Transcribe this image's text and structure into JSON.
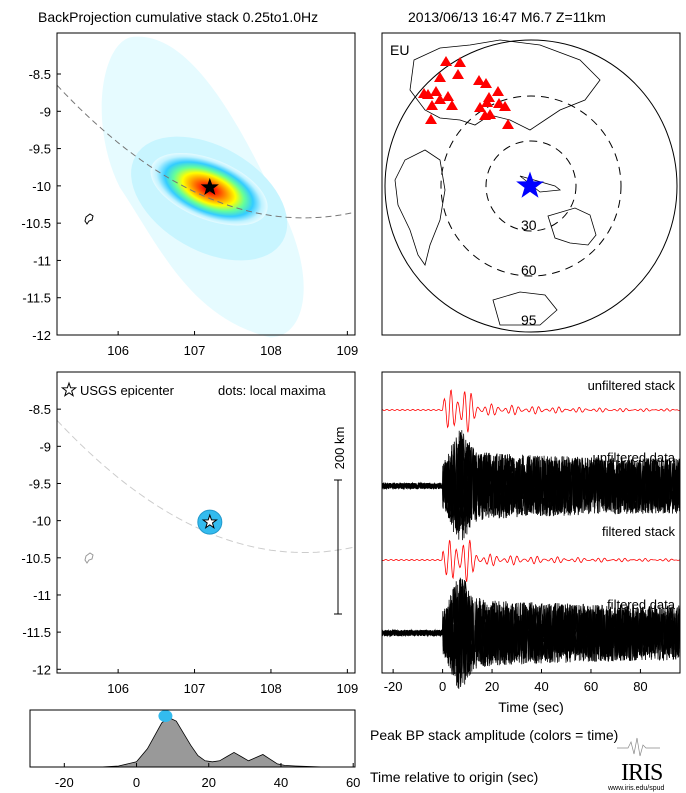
{
  "header": {
    "title_left": "BackProjection cumulative stack 0.25to1.0Hz",
    "title_right": "2013/06/13 16:47  M6.7  Z=11km"
  },
  "colors": {
    "station": "#ff0000",
    "epicenter_star": "#0000ff",
    "local_max_dot": "#33bbee",
    "stack_trace": "#ff0000",
    "data_trace": "#000000",
    "peak_fill": "#999999"
  },
  "chart_data": [
    {
      "type": "heatmap",
      "name": "cumulative-stack-map",
      "xlim": [
        105.2,
        109.1
      ],
      "ylim": [
        -12,
        -7.95
      ],
      "xticks": [
        "106",
        "107",
        "108",
        "109"
      ],
      "yticks": [
        "-8.5",
        "-9",
        "-9.5",
        "-10",
        "-10.5",
        "-11",
        "-11.5",
        "-12"
      ],
      "peak": {
        "lon": 107.2,
        "lat": -10.02
      },
      "epicenter": {
        "lon": 107.2,
        "lat": -10.02
      }
    },
    {
      "type": "scatter",
      "name": "station-map",
      "label": "EU",
      "distance_rings": [
        "30",
        "60",
        "95"
      ]
    },
    {
      "type": "scatter",
      "name": "local-maxima-map",
      "legend": "USGS epicenter",
      "note": "dots: local maxima",
      "scalebar": "200 km",
      "xlim": [
        105.2,
        109.1
      ],
      "ylim": [
        -12,
        -7.95
      ],
      "xticks": [
        "106",
        "107",
        "108",
        "109"
      ],
      "yticks": [
        "-8.5",
        "-9",
        "-9.5",
        "-10",
        "-10.5",
        "-11",
        "-11.5",
        "-12"
      ],
      "points": [
        {
          "lon": 107.2,
          "lat": -10.02
        }
      ]
    },
    {
      "type": "line",
      "name": "waveforms",
      "xlabel": "Time (sec)",
      "xlim": [
        -24.5,
        96
      ],
      "xticks": [
        "-20",
        "0",
        "20",
        "40",
        "60",
        "80"
      ],
      "series": [
        {
          "name": "unfiltered stack"
        },
        {
          "name": "unfiltered data"
        },
        {
          "name": "filtered stack"
        },
        {
          "name": "filtered data"
        }
      ]
    },
    {
      "type": "area",
      "name": "peak-amplitude",
      "title": "Peak BP stack amplitude (colors = time)",
      "xlabel": "Time relative to origin (sec)",
      "xlim": [
        -29.5,
        60.5
      ],
      "xticks": [
        "-20",
        "0",
        "20",
        "40",
        "60"
      ],
      "x": [
        -10,
        -5,
        0,
        3,
        5,
        7,
        9,
        11,
        13,
        15,
        17,
        19,
        21,
        23,
        25,
        27,
        29,
        31,
        33,
        35,
        37,
        39,
        41,
        44,
        48,
        52,
        56,
        60
      ],
      "y": [
        0,
        0.02,
        0.1,
        0.35,
        0.6,
        0.85,
        0.95,
        0.88,
        0.65,
        0.42,
        0.22,
        0.12,
        0.1,
        0.12,
        0.2,
        0.28,
        0.2,
        0.12,
        0.18,
        0.24,
        0.15,
        0.06,
        0.03,
        0.02,
        0.01,
        0,
        0,
        0
      ],
      "peak_time": 8
    }
  ],
  "logo": {
    "name": "IRIS",
    "url_text": "www.iris.edu/spud"
  }
}
